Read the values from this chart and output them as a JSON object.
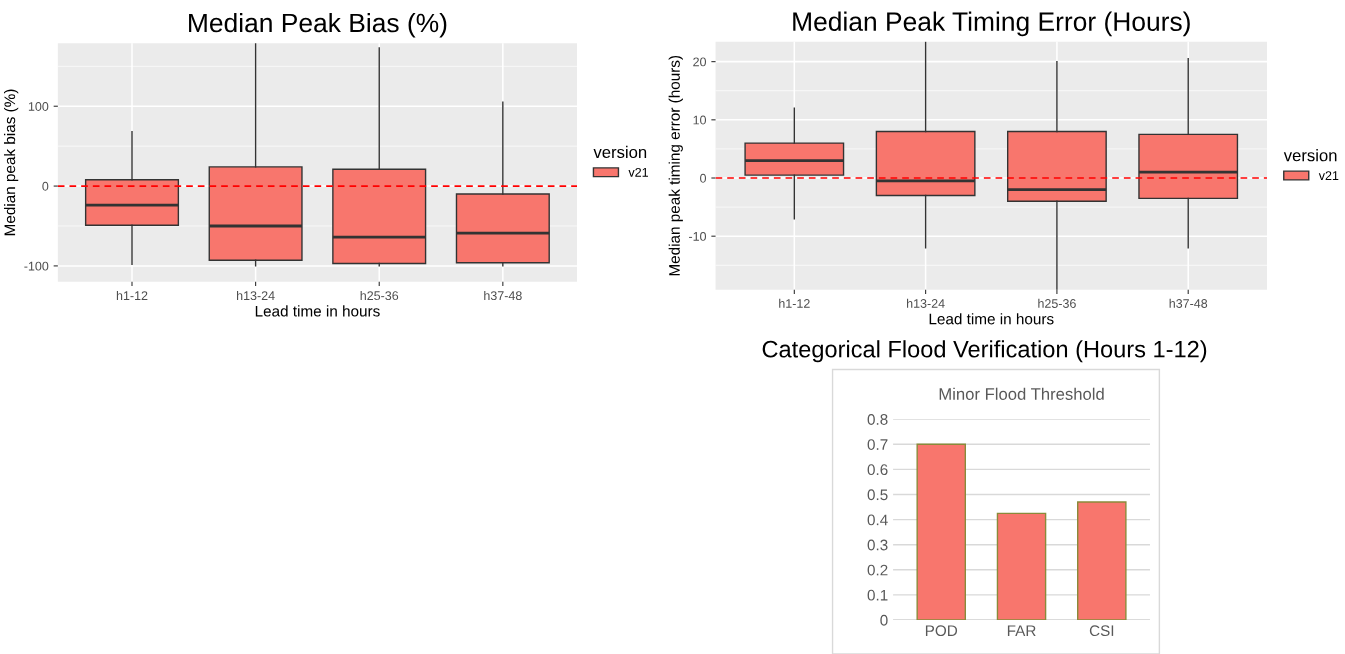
{
  "chart_data": [
    {
      "type": "box",
      "title": "Median Peak Bias (%)",
      "xlabel": "Lead time in hours",
      "ylabel": "Median peak bias (%)",
      "legend_title": "version",
      "legend": "right",
      "grid": true,
      "categories": [
        "h1-12",
        "h13-24",
        "h25-36",
        "h37-48"
      ],
      "series": [
        {
          "name": "v21",
          "color": "#f8766d",
          "boxes": [
            {
              "low": -98,
              "q1": -49,
              "median": -24,
              "q3": 8,
              "high": 68
            },
            {
              "low": -100,
              "q1": -93,
              "median": -50,
              "q3": 24,
              "high": 179
            },
            {
              "low": -100,
              "q1": -97,
              "median": -64,
              "q3": 21,
              "high": 173
            },
            {
              "low": -100,
              "q1": -96,
              "median": -59,
              "q3": -10,
              "high": 105
            }
          ]
        }
      ],
      "ylim": [
        -120,
        179
      ],
      "yticks": [
        -100,
        0,
        100
      ],
      "ref_lines": [
        {
          "axis": "y",
          "value": 0,
          "color": "#ff0000",
          "line_style": "dashed"
        }
      ]
    },
    {
      "type": "box",
      "title": "Median Peak Timing Error (Hours)",
      "xlabel": "Lead time in hours",
      "ylabel": "Median peak timing error (hours)",
      "legend_title": "version",
      "legend": "right",
      "grid": true,
      "categories": [
        "h1-12",
        "h13-24",
        "h25-36",
        "h37-48"
      ],
      "series": [
        {
          "name": "v21",
          "color": "#f8766d",
          "boxes": [
            {
              "low": -7,
              "q1": 0.5,
              "median": 3,
              "q3": 6,
              "high": 12
            },
            {
              "low": -12,
              "q1": -3,
              "median": -0.5,
              "q3": 8,
              "high": 23.4
            },
            {
              "low": -19.2,
              "q1": -4,
              "median": -2,
              "q3": 8,
              "high": 20
            },
            {
              "low": -12,
              "q1": -3.5,
              "median": 1,
              "q3": 7.5,
              "high": 20.5
            }
          ]
        }
      ],
      "ylim": [
        -19.2,
        23.4
      ],
      "yticks": [
        -10,
        0,
        10,
        20
      ],
      "ref_lines": [
        {
          "axis": "y",
          "value": 0,
          "color": "#ff0000",
          "line_style": "dashed"
        }
      ]
    },
    {
      "type": "bar",
      "title": "Categorical Flood Verification (Hours 1-12)",
      "subtitle": "Minor Flood Threshold",
      "grid": "y",
      "categories": [
        "POD",
        "FAR",
        "CSI"
      ],
      "values": [
        0.7,
        0.425,
        0.47
      ],
      "color": "#f8766d",
      "ylim": [
        0,
        0.8
      ],
      "yticks": [
        0,
        0.1,
        0.2,
        0.3,
        0.4,
        0.5,
        0.6,
        0.7,
        0.8
      ]
    }
  ]
}
